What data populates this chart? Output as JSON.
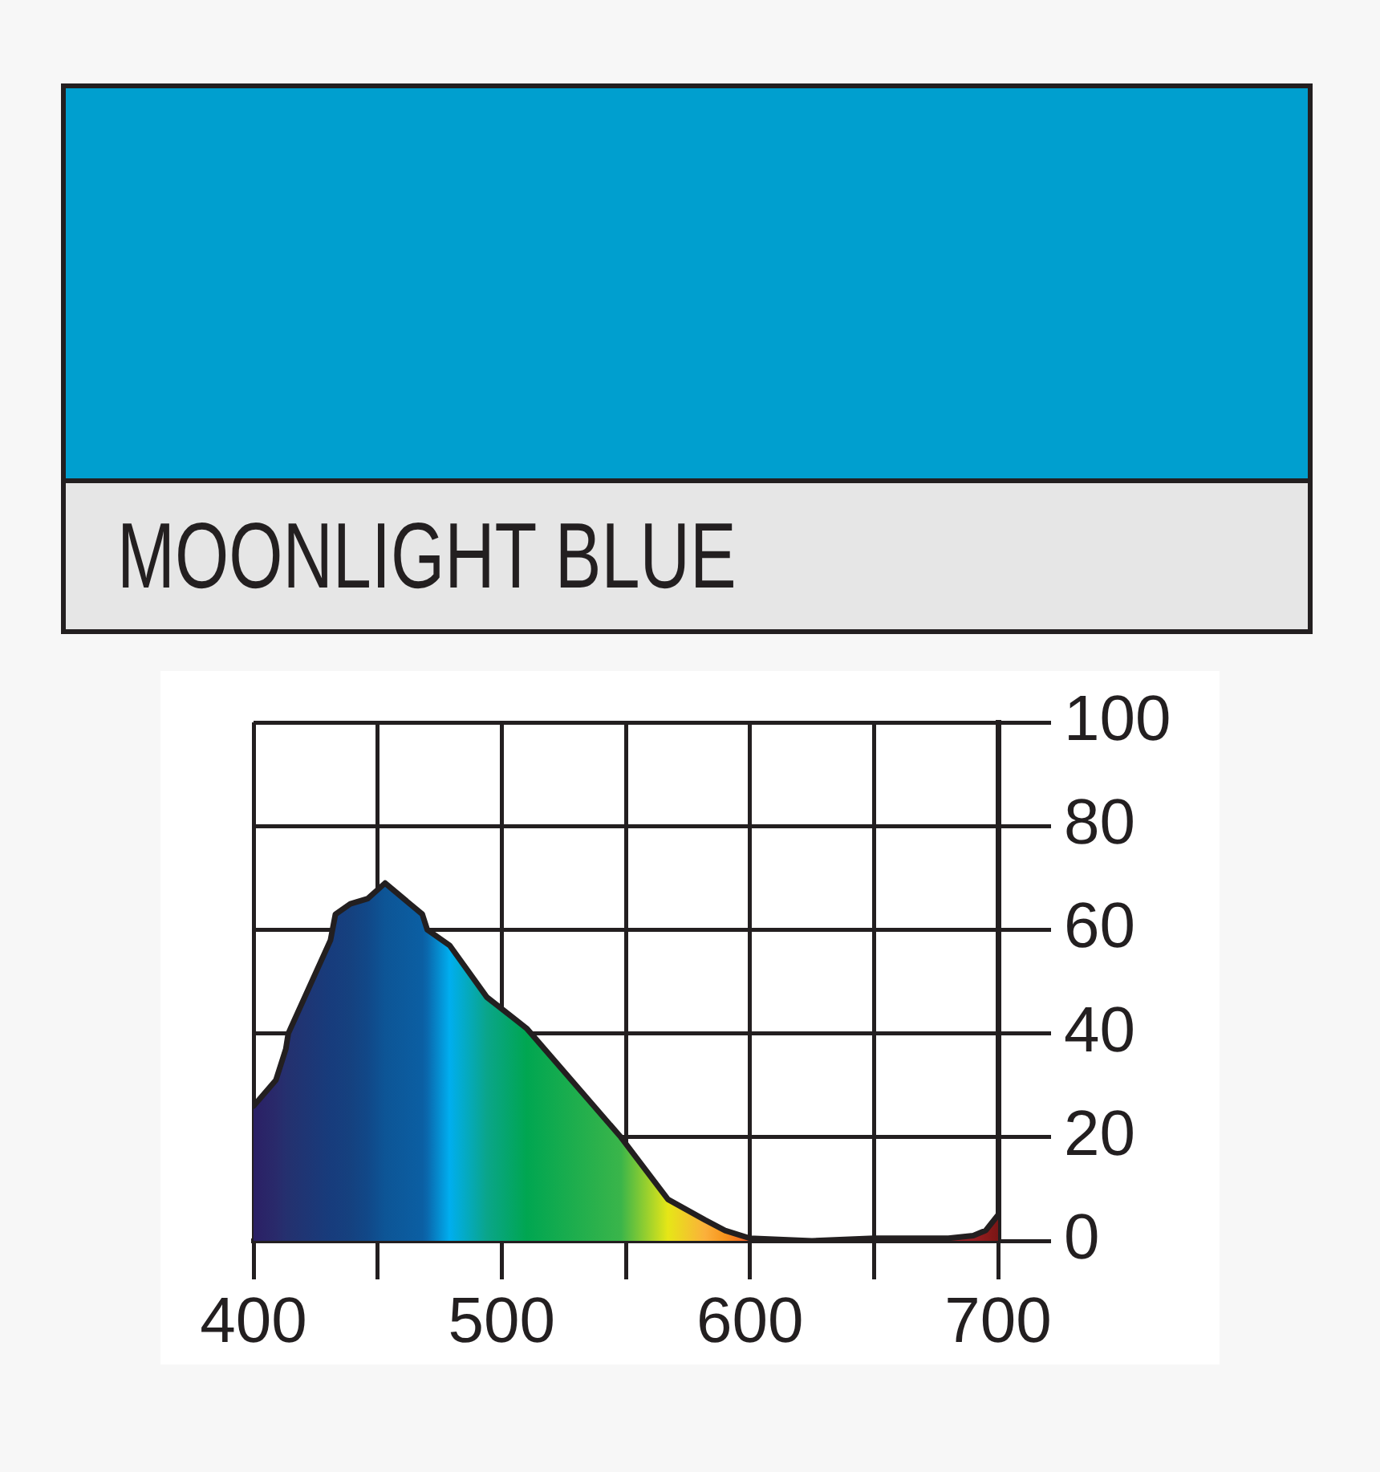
{
  "chart_data": {
    "type": "area",
    "title": "MOONLIGHT BLUE",
    "x": [
      400,
      409,
      413,
      414,
      431,
      433,
      439,
      446,
      453,
      468,
      470,
      479,
      494,
      510,
      548,
      567,
      582,
      590,
      600,
      625,
      650,
      680,
      690,
      695,
      700
    ],
    "values": [
      26,
      31,
      37,
      40,
      58,
      63,
      65,
      66,
      69,
      63,
      60,
      57,
      47,
      41,
      20,
      8,
      4,
      2,
      0.5,
      0,
      0.5,
      0.5,
      1,
      2,
      5
    ],
    "color": "#231f20",
    "colors": [
      "#2b2065",
      "#292a6b",
      "#25306f",
      "#24316f",
      "#173c7c",
      "#173d7d",
      "#15417f",
      "#114888",
      "#0d5596",
      "#0b5fa3",
      "#0a68ad",
      "#00aeef",
      "#0aa58a",
      "#00a651",
      "#3ab54a",
      "#e6e617",
      "#fbb03b",
      "#f7941d",
      "#f15a24",
      "#d9262b",
      "#b8232a",
      "#a0222a",
      "#9a1f24",
      "#8b1a1a",
      "#7a1616"
    ],
    "xlim": [
      400,
      700
    ],
    "xticks": [
      400,
      {
        "value": 450,
        "label": null
      },
      500,
      {
        "value": 550,
        "label": null
      },
      600,
      {
        "value": 650,
        "label": null
      },
      700
    ],
    "ylim": [
      0,
      100
    ],
    "yticks": [
      0,
      20,
      40,
      60,
      80,
      100
    ],
    "grid": true,
    "legend": false,
    "marker": "none",
    "line_style": "solid"
  }
}
